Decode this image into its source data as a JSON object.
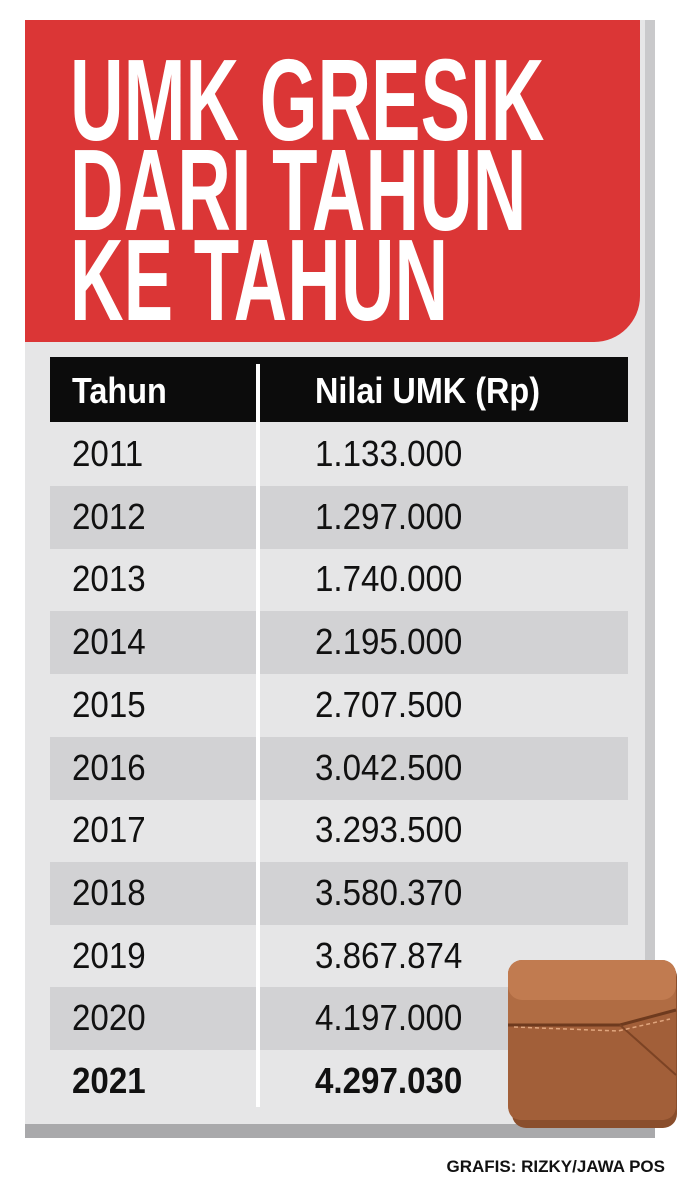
{
  "header": {
    "title_lines": [
      "UMK GRESIK",
      "DARI TAHUN",
      "KE TAHUN"
    ]
  },
  "table": {
    "columns": [
      "Tahun",
      "Nilai UMK (Rp)"
    ],
    "rows": [
      [
        "2011",
        "1.133.000"
      ],
      [
        "2012",
        "1.297.000"
      ],
      [
        "2013",
        "1.740.000"
      ],
      [
        "2014",
        "2.195.000"
      ],
      [
        "2015",
        "2.707.500"
      ],
      [
        "2016",
        "3.042.500"
      ],
      [
        "2017",
        "3.293.500"
      ],
      [
        "2018",
        "3.580.370"
      ],
      [
        "2019",
        "3.867.874"
      ],
      [
        "2020",
        "4.197.000"
      ],
      [
        "2021",
        "4.297.030"
      ]
    ]
  },
  "footer": {
    "credit": "GRAFIS: RIZKY/JAWA POS"
  }
}
